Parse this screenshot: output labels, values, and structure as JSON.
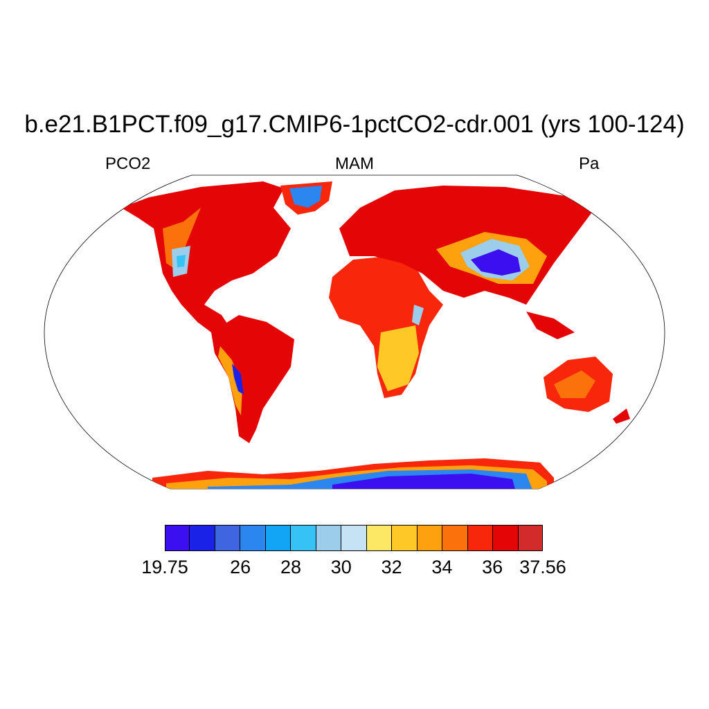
{
  "title": "b.e21.B1PCT.f09_g17.CMIP6-1pctCO2-cdr.001 (yrs 100-124)",
  "left_label": "PCO2",
  "center_label": "MAM",
  "right_label": "Pa",
  "projection": "Robinson",
  "colorbar": {
    "colors": [
      "#3b0ff0",
      "#1a22e8",
      "#3f66e0",
      "#2b86f0",
      "#12a5f5",
      "#36c2f5",
      "#9ccdeb",
      "#c6e3f5",
      "#fde865",
      "#fec826",
      "#fda10f",
      "#fb720c",
      "#f8260a",
      "#e40606",
      "#d32a2b"
    ],
    "labels": [
      {
        "text": "19.75",
        "slot": 0
      },
      {
        "text": "26",
        "slot": 3
      },
      {
        "text": "28",
        "slot": 5
      },
      {
        "text": "30",
        "slot": 7
      },
      {
        "text": "32",
        "slot": 9
      },
      {
        "text": "34",
        "slot": 11
      },
      {
        "text": "36",
        "slot": 13
      },
      {
        "text": "37.56",
        "slot": 15
      }
    ]
  },
  "chart_data": {
    "type": "heatmap",
    "title": "b.e21.B1PCT.f09_g17.CMIP6-1pctCO2-cdr.001 (yrs 100-124)",
    "variable": "PCO2",
    "season": "MAM",
    "units": "Pa",
    "range": [
      19.75,
      37.56
    ],
    "contour_levels": [
      26,
      28,
      30,
      32,
      34,
      36
    ]
  }
}
